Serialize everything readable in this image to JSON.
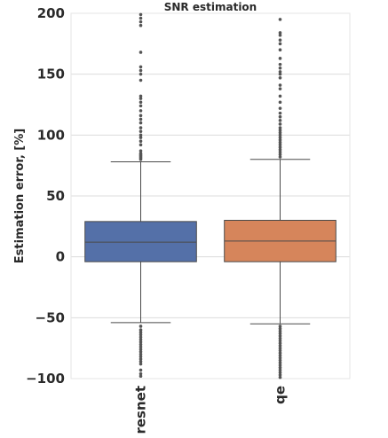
{
  "chart_data": {
    "type": "box",
    "title": "SNR estimation",
    "xlabel": "",
    "ylabel": "Estimation error, [%]",
    "ylim": [
      -100,
      200
    ],
    "yticks": [
      -100,
      -50,
      0,
      50,
      100,
      150,
      200
    ],
    "ytick_labels": [
      "−100",
      "−50",
      "0",
      "50",
      "100",
      "150",
      "200"
    ],
    "grid": true,
    "categories": [
      "resnet",
      "qe"
    ],
    "boxes": [
      {
        "name": "resnet",
        "color": "#5470a8",
        "q1": -4,
        "median": 12,
        "q3": 29,
        "whisker_low": -54,
        "whisker_high": 78,
        "outliers_high": [
          80,
          81,
          82,
          83,
          84,
          85,
          87,
          92,
          95,
          98,
          100,
          103,
          106,
          110,
          113,
          116,
          120,
          124,
          127,
          130,
          132,
          145,
          150,
          153,
          156,
          168,
          190,
          193,
          196,
          199
        ],
        "outliers_low": [
          -57,
          -60,
          -62,
          -64,
          -66,
          -68,
          -70,
          -72,
          -74,
          -76,
          -78,
          -80,
          -82,
          -84,
          -86,
          -88,
          -93,
          -96,
          -98
        ]
      },
      {
        "name": "qe",
        "color": "#d6855b",
        "q1": -4,
        "median": 13,
        "q3": 30,
        "whisker_low": -55,
        "whisker_high": 80,
        "outliers_high": [
          82,
          84,
          86,
          88,
          90,
          92,
          94,
          96,
          98,
          100,
          102,
          104,
          106,
          109,
          112,
          115,
          118,
          122,
          127,
          132,
          138,
          141,
          147,
          150,
          152,
          155,
          158,
          163,
          170,
          175,
          178,
          182,
          184,
          195
        ],
        "outliers_low": [
          -57,
          -59,
          -61,
          -63,
          -65,
          -67,
          -69,
          -71,
          -73,
          -75,
          -77,
          -79,
          -81,
          -83,
          -85,
          -87,
          -89,
          -91,
          -93,
          -95,
          -97,
          -99
        ]
      }
    ]
  }
}
